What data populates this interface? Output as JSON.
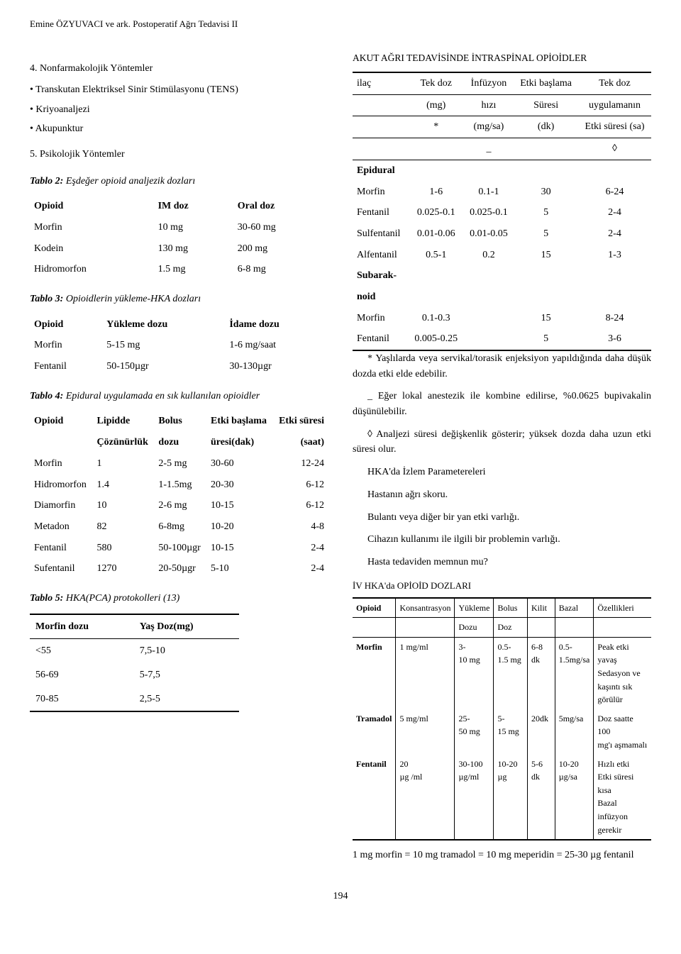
{
  "running_head": "Emine ÖZYUVACI ve ark. Postoperatif Ağrı Tedavisi II",
  "page_number": "194",
  "left": {
    "section4": {
      "title": "4. Nonfarmakolojik Yöntemler",
      "items": [
        "Transkutan Elektriksel Sinir Stimülasyonu (TENS)",
        "Kriyoanaljezi",
        "Akupunktur"
      ]
    },
    "section5": {
      "title": "5. Psikolojik Yöntemler"
    },
    "tablo2": {
      "caption_name": "Tablo 2:",
      "caption_rest": " Eşdeğer opioid analjezik dozları",
      "headers": [
        "Opioid",
        "IM doz",
        "Oral doz"
      ],
      "rows": [
        [
          "Morfin",
          "10 mg",
          "30-60 mg"
        ],
        [
          "Kodein",
          "130 mg",
          "200 mg"
        ],
        [
          "Hidromorfon",
          "1.5 mg",
          "6-8 mg"
        ]
      ]
    },
    "tablo3": {
      "caption_name": "Tablo 3:",
      "caption_rest": " Opioidlerin yükleme-HKA dozları",
      "headers": [
        "Opioid",
        "Yükleme dozu",
        "İdame dozu"
      ],
      "rows": [
        [
          "Morfin",
          "5-15 mg",
          "1-6 mg/saat"
        ],
        [
          "Fentanil",
          "50-150µgr",
          "30-130µgr"
        ]
      ]
    },
    "tablo4": {
      "caption_name": "Tablo 4:",
      "caption_rest": " Epidural uygulamada en sık kullanılan opioidler",
      "h1": [
        "Opioid",
        "Lipidde",
        "Bolus",
        "Etki başlama",
        "Etki süresi"
      ],
      "h2": [
        "",
        "Çözünürlük",
        "dozu",
        "üresi(dak)",
        "(saat)"
      ],
      "rows": [
        [
          "Morfin",
          "1",
          "2-5 mg",
          "30-60",
          "12-24"
        ],
        [
          "Hidromorfon",
          "1.4",
          "1-1.5mg",
          "20-30",
          "6-12"
        ],
        [
          "Diamorfin",
          "10",
          "2-6 mg",
          "10-15",
          "6-12"
        ],
        [
          "Metadon",
          "82",
          "6-8mg",
          "10-20",
          "4-8"
        ],
        [
          "Fentanil",
          "580",
          "50-100µgr",
          "10-15",
          "2-4"
        ],
        [
          "Sufentanil",
          "1270",
          "20-50µgr",
          "5-10",
          "2-4"
        ]
      ]
    },
    "tablo5": {
      "caption_name": "Tablo 5:",
      "caption_rest": " HKA(PCA) protokolleri (13)",
      "headers": [
        "Morfin dozu",
        "Yaş Doz(mg)"
      ],
      "rows": [
        [
          "<55",
          "7,5-10"
        ],
        [
          "56-69",
          "5-7,5"
        ],
        [
          "70-85",
          "2,5-5"
        ]
      ]
    }
  },
  "right": {
    "akut_head": "AKUT AĞRI TEDAVİSİNDE İNTRASPİNAL OPİOİDLER",
    "akut": {
      "h1": [
        "ilaç",
        "Tek doz",
        "İnfüzyon",
        "Etki başlama",
        "Tek doz"
      ],
      "h2": [
        "",
        "(mg)",
        "hızı",
        "Süresi",
        "uygulamanın"
      ],
      "h3": [
        "",
        "*",
        "(mg/sa)",
        "(dk)",
        "Etki süresi (sa)"
      ],
      "h4": [
        "",
        "",
        "_",
        "",
        "◊"
      ],
      "sections": [
        {
          "name": "Epidural",
          "rows": [
            [
              "Morfin",
              "1-6",
              "0.1-1",
              "30",
              "6-24"
            ],
            [
              "Fentanil",
              "0.025-0.1",
              "0.025-0.1",
              "5",
              "2-4"
            ],
            [
              "Sulfentanil",
              "0.01-0.06",
              "0.01-0.05",
              "5",
              "2-4"
            ],
            [
              "Alfentanil",
              "0.5-1",
              "0.2",
              "15",
              "1-3"
            ]
          ]
        },
        {
          "name": "Subaraknoid",
          "name_split": [
            "Subarak-",
            "noid"
          ],
          "rows": [
            [
              "Morfin",
              "0.1-0.3",
              "",
              "15",
              "8-24"
            ],
            [
              "Fentanil",
              "0.005-0.25",
              "",
              "5",
              "3-6"
            ]
          ]
        }
      ]
    },
    "notes": [
      "* Yaşlılarda veya servikal/torasik enjeksiyon yapıldığında daha düşük dozda etki elde edebilir.",
      "_ Eğer lokal anestezik ile kombine edilirse, %0.0625 bupivakalin düşünülebilir.",
      "◊ Analjezi süresi değişkenlik gösterir; yüksek dozda daha uzun etki süresi olur."
    ],
    "lines": [
      "HKA'da İzlem Parametereleri",
      "Hastanın ağrı skoru.",
      "Bulantı veya diğer bir yan etki varlığı.",
      "Cihazın kullanımı ile ilgili bir problemin varlığı.",
      "Hasta tedaviden memnun mu?"
    ],
    "iv_head": "İV HKA'da OPİOİD DOZLARI",
    "iv": {
      "h1": [
        "Opioid",
        "Konsantrasyon",
        "Yükleme",
        "Bolus",
        "Kilit",
        "Bazal",
        "Özellikleri"
      ],
      "h2": [
        "",
        "",
        "Dozu",
        "Doz",
        "",
        "",
        ""
      ],
      "rows": [
        {
          "c": [
            "Morfin",
            "1 mg/ml",
            "3-\n10 mg",
            "0.5-\n1.5 mg",
            "6-8 dk",
            "0.5-\n1.5mg/sa",
            "Peak etki yavaş\nSedasyon ve\nkaşıntı sık görülür"
          ]
        },
        {
          "c": [
            "Tramadol",
            "5 mg/ml",
            "25-\n50 mg",
            "5-\n15 mg",
            "20dk",
            "5mg/sa",
            "Doz saatte 100\nmg'ı aşmamalı"
          ]
        },
        {
          "c": [
            "Fentanil",
            "20\nµg /ml",
            "30-100\nµg/ml",
            "10-20 µg",
            "5-6 dk",
            "10-20\nµg/sa",
            "Hızlı etki\nEtki süresi kısa\nBazal infüzyon\ngerekir"
          ]
        }
      ]
    },
    "equiv": "1 mg morfin = 10 mg tramadol = 10 mg meperidin = 25-30 µg  fentanil"
  }
}
